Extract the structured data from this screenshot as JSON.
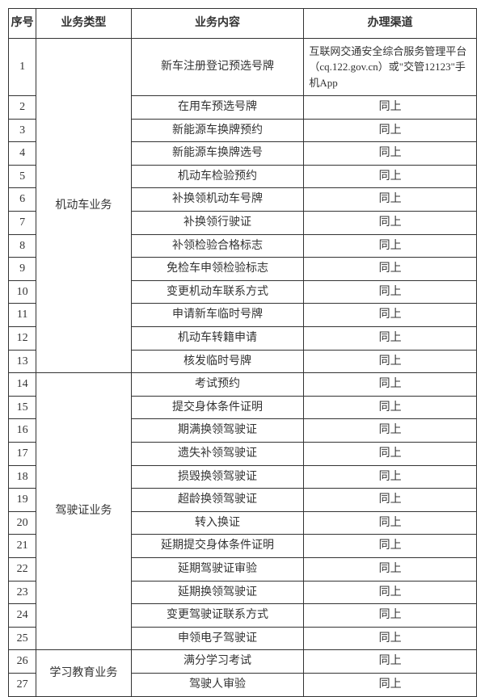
{
  "headers": {
    "num": "序号",
    "type": "业务类型",
    "content": "业务内容",
    "channel": "办理渠道"
  },
  "categories": {
    "vehicle": "机动车业务",
    "license": "驾驶证业务",
    "education": "学习教育业务"
  },
  "channel_main": "互联网交通安全综合服务管理平台（cq.122.gov.cn）或\"交管12123\"手机App",
  "channel_same": "同上",
  "rows": [
    {
      "n": "1",
      "content": "新车注册登记预选号牌"
    },
    {
      "n": "2",
      "content": "在用车预选号牌"
    },
    {
      "n": "3",
      "content": "新能源车换牌预约"
    },
    {
      "n": "4",
      "content": "新能源车换牌选号"
    },
    {
      "n": "5",
      "content": "机动车检验预约"
    },
    {
      "n": "6",
      "content": "补换领机动车号牌"
    },
    {
      "n": "7",
      "content": "补换领行驶证"
    },
    {
      "n": "8",
      "content": "补领检验合格标志"
    },
    {
      "n": "9",
      "content": "免检车申领检验标志"
    },
    {
      "n": "10",
      "content": "变更机动车联系方式"
    },
    {
      "n": "11",
      "content": "申请新车临时号牌"
    },
    {
      "n": "12",
      "content": "机动车转籍申请"
    },
    {
      "n": "13",
      "content": "核发临时号牌"
    },
    {
      "n": "14",
      "content": "考试预约"
    },
    {
      "n": "15",
      "content": "提交身体条件证明"
    },
    {
      "n": "16",
      "content": "期满换领驾驶证"
    },
    {
      "n": "17",
      "content": "遗失补领驾驶证"
    },
    {
      "n": "18",
      "content": "损毁换领驾驶证"
    },
    {
      "n": "19",
      "content": "超龄换领驾驶证"
    },
    {
      "n": "20",
      "content": "转入换证"
    },
    {
      "n": "21",
      "content": "延期提交身体条件证明"
    },
    {
      "n": "22",
      "content": "延期驾驶证审验"
    },
    {
      "n": "23",
      "content": "延期换领驾驶证"
    },
    {
      "n": "24",
      "content": "变更驾驶证联系方式"
    },
    {
      "n": "25",
      "content": "申领电子驾驶证"
    },
    {
      "n": "26",
      "content": "满分学习考试"
    },
    {
      "n": "27",
      "content": "驾驶人审验"
    }
  ],
  "styling": {
    "font_family": "SimSun",
    "font_size_header": 14,
    "font_size_body": 14,
    "border_color": "#333333",
    "text_color": "#333333",
    "background_color": "#ffffff",
    "col_widths": {
      "num": 32,
      "type": 110,
      "content": 200,
      "channel": 200
    }
  }
}
